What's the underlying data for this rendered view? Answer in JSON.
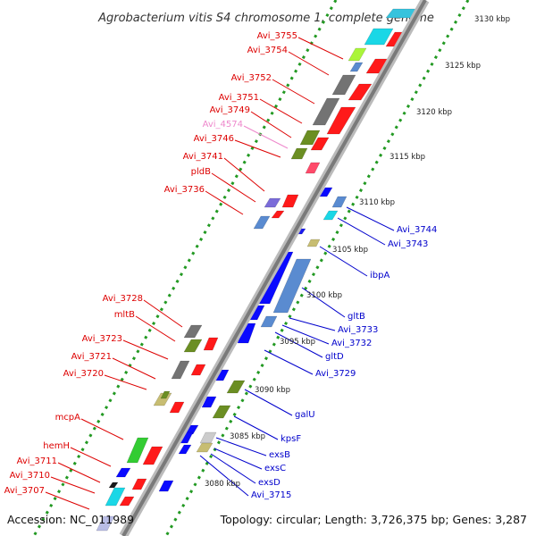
{
  "title": "Agrobacterium vitis S4 chromosome 1, complete genome",
  "footer": {
    "accession": "Accession: NC_011989",
    "topology": "Topology: circular; Length: 3,726,375 bp; Genes: 3,287"
  },
  "colors": {
    "forward_label": "#dd0000",
    "reverse_label": "#0000cc",
    "pseudo_label": "#ee88cc",
    "forward_gene": "#ff0000",
    "reverse_gene": "#0000ff",
    "backbone": "#888888",
    "tick": "#229922"
  },
  "kbp_marks": [
    "3130 kbp",
    "3125 kbp",
    "3120 kbp",
    "3115 kbp",
    "3110 kbp",
    "3105 kbp",
    "3100 kbp",
    "3095 kbp",
    "3090 kbp",
    "3085 kbp",
    "3080 kbp"
  ],
  "forward_labels": [
    "Avi_3755",
    "Avi_3754",
    "Avi_3752",
    "Avi_3751",
    "Avi_3749",
    "Avi_4574",
    "Avi_3746",
    "Avi_3741",
    "pldB",
    "Avi_3736",
    "Avi_3728",
    "mltB",
    "Avi_3723",
    "Avi_3721",
    "Avi_3720",
    "mcpA",
    "hemH",
    "Avi_3711",
    "Avi_3710",
    "Avi_3707"
  ],
  "reverse_labels": [
    "Avi_3744",
    "Avi_3743",
    "ibpA",
    "gltB",
    "Avi_3733",
    "Avi_3732",
    "gltD",
    "Avi_3729",
    "galU",
    "kpsF",
    "exsB",
    "exsC",
    "exsD",
    "Avi_3715"
  ]
}
